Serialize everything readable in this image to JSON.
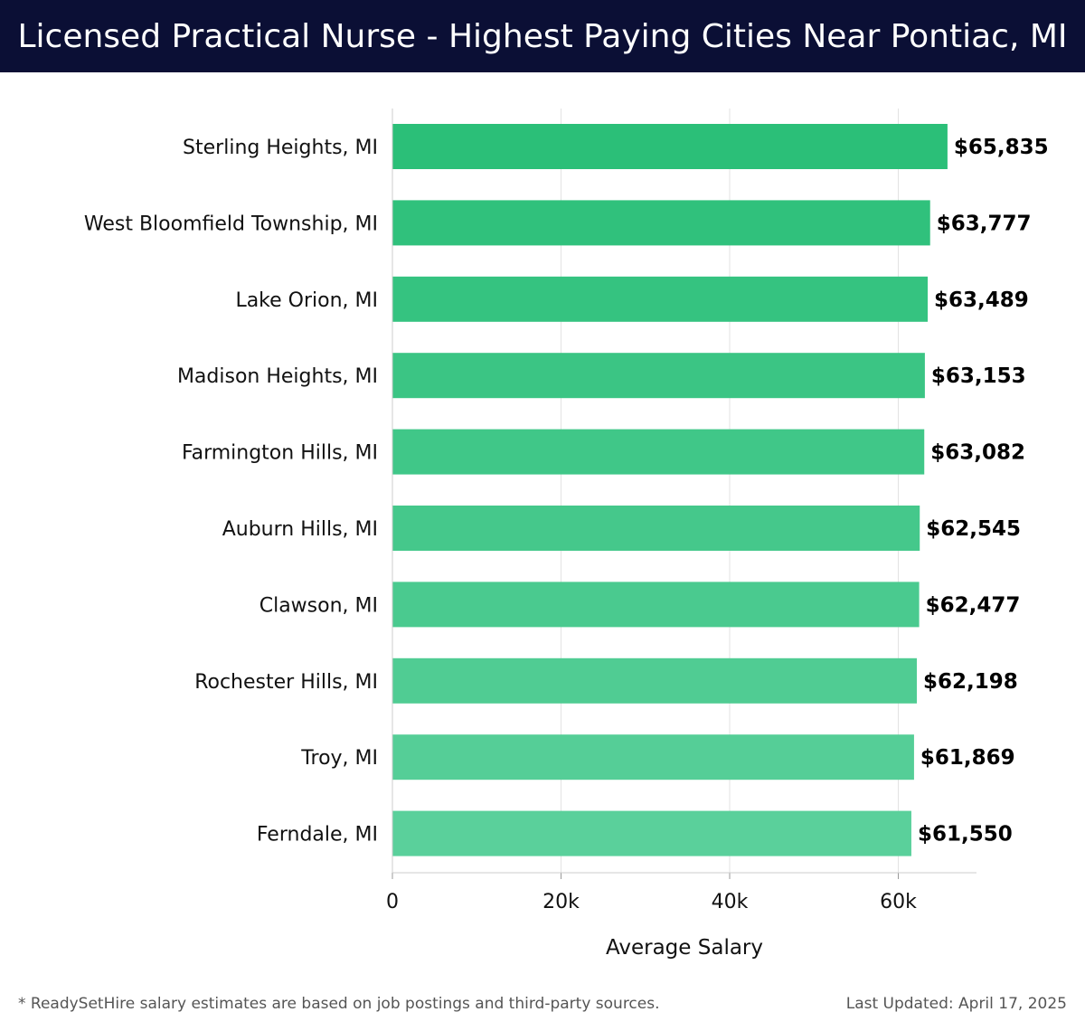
{
  "header": {
    "title": "Licensed Practical Nurse - Highest Paying Cities Near Pontiac, MI"
  },
  "footer": {
    "note": "* ReadySetHire salary estimates are based on job postings and third-party sources.",
    "last_updated": "Last Updated: April 17, 2025"
  },
  "colors": {
    "header_bg": "#0b0f35",
    "bar_top": "#2bbf78",
    "bar_bottom": "#5ad09b"
  },
  "chart_data": {
    "type": "bar",
    "orientation": "horizontal",
    "categories": [
      "Sterling Heights, MI",
      "West Bloomfield Township, MI",
      "Lake Orion, MI",
      "Madison Heights, MI",
      "Farmington Hills, MI",
      "Auburn Hills, MI",
      "Clawson, MI",
      "Rochester Hills, MI",
      "Troy, MI",
      "Ferndale, MI"
    ],
    "values": [
      65835,
      63777,
      63489,
      63153,
      63082,
      62545,
      62477,
      62198,
      61869,
      61550
    ],
    "value_labels": [
      "$65,835",
      "$63,777",
      "$63,489",
      "$63,153",
      "$63,082",
      "$62,545",
      "$62,477",
      "$62,198",
      "$61,869",
      "$61,550"
    ],
    "xlabel": "Average Salary",
    "ylabel": "",
    "xlim": [
      0,
      69300
    ],
    "xticks": [
      0,
      20000,
      40000,
      60000
    ],
    "xtick_labels": [
      "0",
      "20k",
      "40k",
      "60k"
    ],
    "grid": true
  }
}
